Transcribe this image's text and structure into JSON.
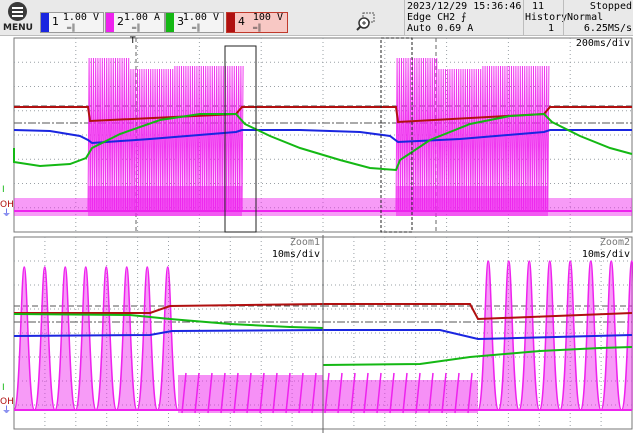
{
  "menu": {
    "label": "MENU"
  },
  "channels": [
    {
      "num": "1",
      "scale": "1.00 V",
      "color": "#1a26e0"
    },
    {
      "num": "2",
      "scale": "1.00 A",
      "color": "#ee22ee"
    },
    {
      "num": "3",
      "scale": "1.00 V",
      "color": "#14b814"
    },
    {
      "num": "4",
      "scale": "100 V",
      "color": "#b01010"
    }
  ],
  "status": {
    "datetime": "2023/12/29 15:36:46",
    "count": "11",
    "state": "Stopped",
    "trigger_line1": "Edge CH2 ⨍",
    "trigger_line2": "Auto 0.69 A",
    "history_label": "History",
    "history_value": "1",
    "mode": "Normal",
    "sample_rate": "6.25MS/s"
  },
  "main_timebase": "200ms/div",
  "zoom1": {
    "title": "Zoom1",
    "timebase": "10ms/div"
  },
  "zoom2": {
    "title": "Zoom2",
    "timebase": "10ms/div"
  },
  "markers": {
    "trigger_pos": "T",
    "ch3_marker": "I",
    "ch4_marker": "OH",
    "ground": "⏚"
  },
  "icons": {
    "menu": "menu-icon",
    "zoom": "zoom-magnifier-icon"
  },
  "colors": {
    "grid": "#9aa0a6",
    "ch1": "#1a26e0",
    "ch2": "#ee22ee",
    "ch3": "#14b814",
    "ch4": "#b01010"
  }
}
